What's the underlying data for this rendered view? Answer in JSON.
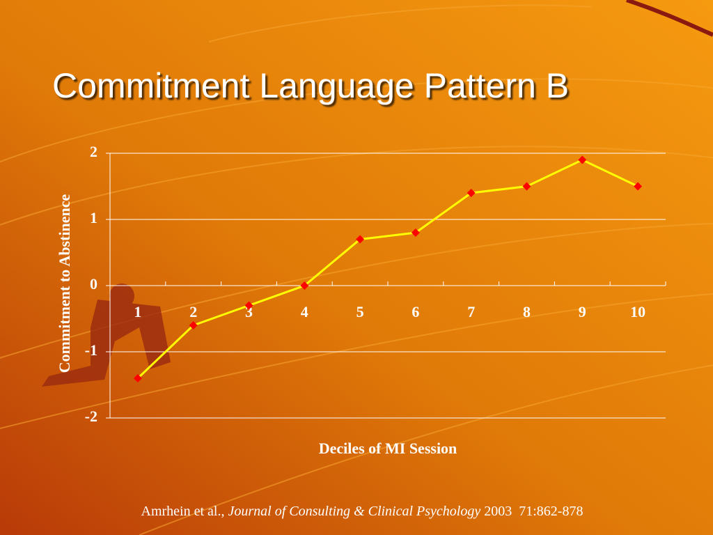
{
  "chart_data": {
    "type": "line",
    "title": "Commitment Language Pattern B",
    "x_label": "Deciles of MI Session",
    "y_label": "Commitment to Abstinence",
    "categories": [
      "1",
      "2",
      "3",
      "4",
      "5",
      "6",
      "7",
      "8",
      "9",
      "10"
    ],
    "series": [
      {
        "color": "#ffff00",
        "marker_color": "#ff0000",
        "values": [
          -1.4,
          -0.6,
          -0.3,
          0,
          0.7,
          0.8,
          1.4,
          1.5,
          1.9,
          1.5
        ]
      }
    ],
    "ylim": [
      -2,
      2
    ],
    "yticks": [
      -2,
      -1,
      0,
      1,
      2
    ],
    "grid": true,
    "citation": {
      "authors": "Amrhein et al.,",
      "journal": "Journal of Consulting & Clinical Psychology",
      "details": "2003  71:862-878"
    }
  }
}
